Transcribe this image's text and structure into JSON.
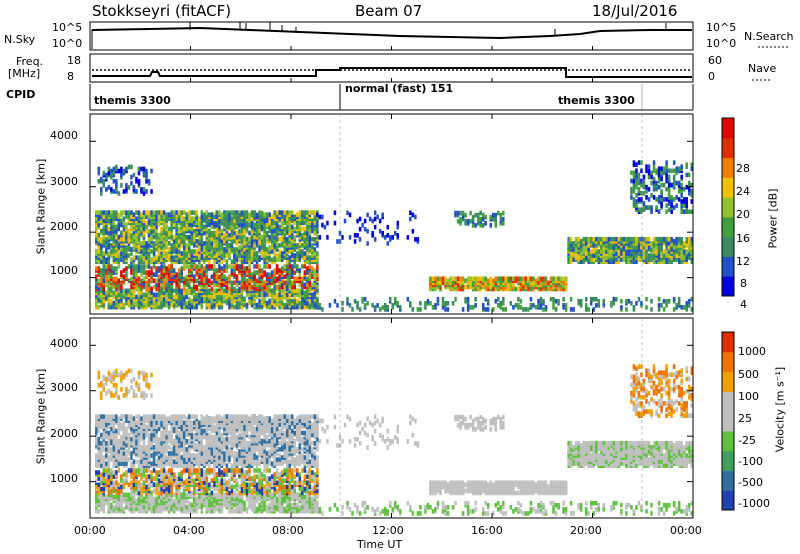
{
  "header": {
    "station": "Stokkseyri (fitACF)",
    "beam": "Beam 07",
    "date": "18/Jul/2016"
  },
  "top_panels": {
    "nsky_label": "N.Sky",
    "nsky_ticks": [
      "10^5",
      "10^0"
    ],
    "nsearch_label": "N.Search",
    "nsearch_ticks": [
      "10^5",
      "10^0"
    ],
    "freq_label": "Freq.",
    "freq_unit": "[MHz]",
    "freq_ticks": [
      "18",
      "8"
    ],
    "nave_label": "Nave",
    "nave_ticks": [
      "60",
      "0"
    ],
    "cpid_label": "CPID",
    "cpid_segments": [
      "themis 3300",
      "normal (fast) 151",
      "themis 3300"
    ]
  },
  "chart_data": [
    {
      "type": "heatmap",
      "panel": "power",
      "ylabel": "Slant Range [km]",
      "yticks": [
        1000,
        2000,
        3000,
        4000
      ],
      "ylim": [
        200,
        4600
      ],
      "xlim_hours": [
        0,
        24
      ],
      "colorbar_label": "Power [dB]",
      "colorbar_ticks": [
        "28",
        "24",
        "20",
        "16",
        "12",
        "8",
        "4"
      ],
      "colors": [
        "#0000e0",
        "#2050c8",
        "#3a8a60",
        "#40a040",
        "#90c030",
        "#f0c000",
        "#f08000",
        "#e03000",
        "#e00000"
      ]
    },
    {
      "type": "heatmap",
      "panel": "velocity",
      "ylabel": "Slant Range [km]",
      "yticks": [
        1000,
        2000,
        3000,
        4000
      ],
      "ylim": [
        200,
        4600
      ],
      "xlim_hours": [
        0,
        24
      ],
      "colorbar_label": "Velocity [m s⁻¹]",
      "colorbar_ticks": [
        "1000",
        "500",
        "100",
        "25",
        "-25",
        "-100",
        "-500",
        "-1000"
      ],
      "colors": [
        "#2040b0",
        "#3070a0",
        "#40a060",
        "#60c040",
        "#c0c0c0",
        "#c0c0c0",
        "#f0a000",
        "#f07000",
        "#e03000"
      ]
    }
  ],
  "xaxis": {
    "ticks": [
      "00:00",
      "04:00",
      "08:00",
      "12:00",
      "16:00",
      "20:00",
      "00:00"
    ],
    "label": "Time UT"
  }
}
